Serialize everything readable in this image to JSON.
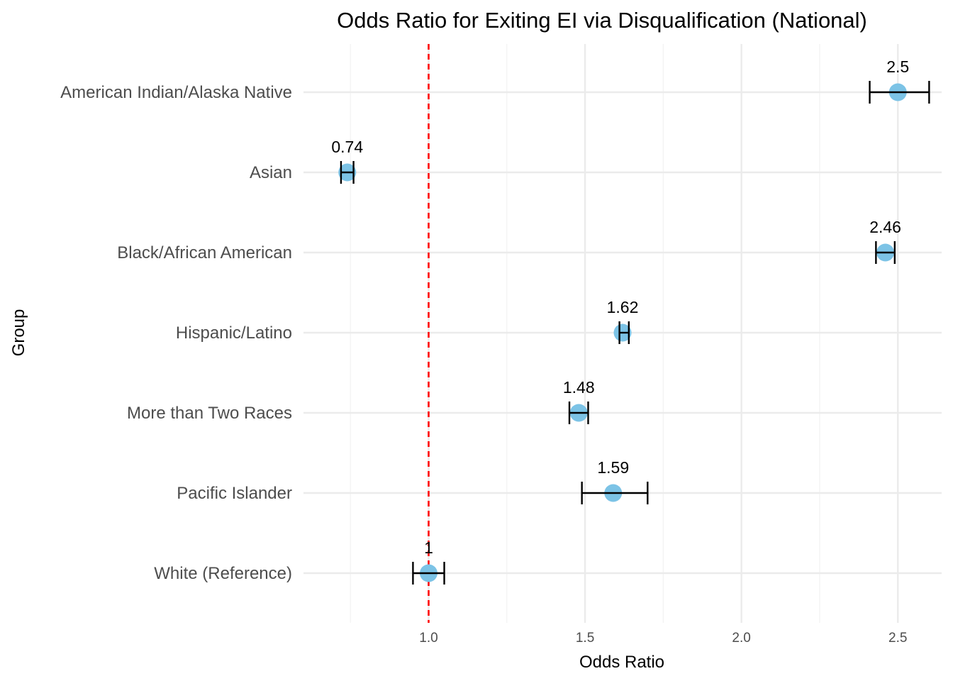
{
  "chart_data": {
    "type": "scatter",
    "title": "Odds Ratio for Exiting EI via Disqualification (National)",
    "xlabel": "Odds Ratio",
    "ylabel": "Group",
    "xlim": [
      0.6,
      2.64
    ],
    "x_ticks": [
      "1.0",
      "1.5",
      "2.0",
      "2.5"
    ],
    "x_tick_values": [
      1.0,
      1.5,
      2.0,
      2.5
    ],
    "x_minor_tick_values": [
      0.75,
      1.25,
      1.75,
      2.25
    ],
    "reference_line": {
      "x": 1.0,
      "style": "dashed",
      "color": "#ff0000"
    },
    "point_color": "#7cc3e6",
    "grid": true,
    "legend": "none",
    "categories": [
      "American Indian/Alaska Native",
      "Asian",
      "Black/African American",
      "Hispanic/Latino",
      "More than Two Races",
      "Pacific Islander",
      "White (Reference)"
    ],
    "points": [
      {
        "group": "American Indian/Alaska Native",
        "x": 2.5,
        "lower": 2.41,
        "upper": 2.6,
        "label": "2.5"
      },
      {
        "group": "Asian",
        "x": 0.74,
        "lower": 0.72,
        "upper": 0.76,
        "label": "0.74"
      },
      {
        "group": "Black/African American",
        "x": 2.46,
        "lower": 2.43,
        "upper": 2.49,
        "label": "2.46"
      },
      {
        "group": "Hispanic/Latino",
        "x": 1.62,
        "lower": 1.61,
        "upper": 1.64,
        "label": "1.62"
      },
      {
        "group": "More than Two Races",
        "x": 1.48,
        "lower": 1.45,
        "upper": 1.51,
        "label": "1.48"
      },
      {
        "group": "Pacific Islander",
        "x": 1.59,
        "lower": 1.49,
        "upper": 1.7,
        "label": "1.59"
      },
      {
        "group": "White (Reference)",
        "x": 1.0,
        "lower": 0.95,
        "upper": 1.05,
        "label": "1"
      }
    ]
  }
}
